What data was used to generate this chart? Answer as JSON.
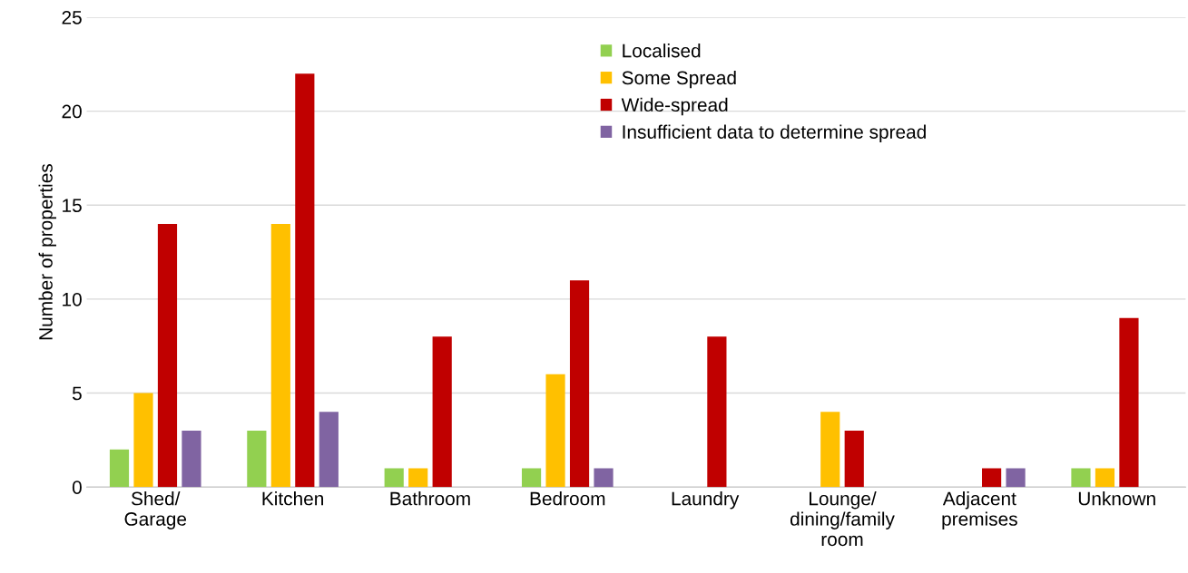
{
  "chart_data": {
    "type": "bar",
    "ylabel": "Number of properties",
    "categories": [
      "Shed/\nGarage",
      "Kitchen",
      "Bathroom",
      "Bedroom",
      "Laundry",
      "Lounge/\ndining/family\nroom",
      "Adjacent\npremises",
      "Unknown"
    ],
    "series": [
      {
        "name": "Localised",
        "color": "#92d050",
        "values": [
          2,
          3,
          1,
          1,
          0,
          0,
          0,
          1
        ]
      },
      {
        "name": "Some Spread",
        "color": "#ffc000",
        "values": [
          5,
          14,
          1,
          6,
          0,
          4,
          0,
          1
        ]
      },
      {
        "name": "Wide-spread",
        "color": "#c00000",
        "values": [
          14,
          22,
          8,
          11,
          8,
          3,
          1,
          9
        ]
      },
      {
        "name": "Insufficient data to determine spread",
        "color": "#8064a2",
        "values": [
          3,
          4,
          0,
          1,
          0,
          0,
          1,
          0
        ]
      }
    ],
    "ylim": [
      0,
      25
    ],
    "yticks": [
      0,
      5,
      10,
      15,
      20,
      25
    ],
    "grid": "y",
    "legend": "top right"
  }
}
